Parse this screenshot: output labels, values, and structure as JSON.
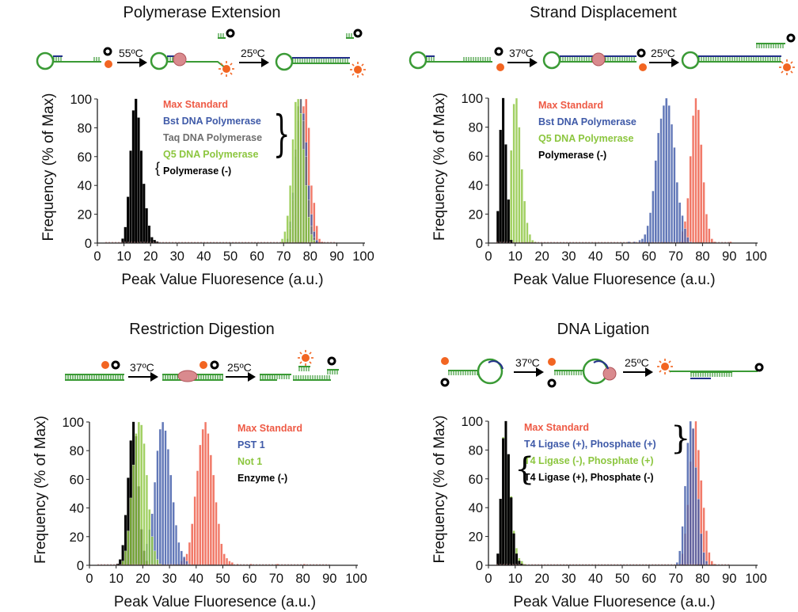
{
  "schematics": [
    {
      "temps": [
        "55ºC",
        "25ºC"
      ]
    },
    {
      "temps": [
        "37ºC",
        "25ºC"
      ]
    },
    {
      "temps": [
        "37ºC",
        "25ºC"
      ]
    },
    {
      "temps": [
        "37ºC",
        "25ºC"
      ]
    }
  ],
  "colors": {
    "red": "#ee5a45",
    "blue": "#3f5aa8",
    "gray": "#6e6e6e",
    "green": "#8cc63f",
    "black": "#000000",
    "dna_green": "#3a9a35",
    "dna_blue": "#23308a",
    "fluor": "#f26522",
    "enzyme": "#d98a8e"
  },
  "chart_data": [
    {
      "type": "bar",
      "title": "Polymerase Extension",
      "xlabel": "Peak Value Fluoresence (a.u.)",
      "ylabel": "Frequency (% of Max)",
      "xlim": [
        0,
        100
      ],
      "ylim": [
        0,
        100
      ],
      "xticks": [
        "0",
        "10",
        "20",
        "30",
        "40",
        "50",
        "60",
        "70",
        "80",
        "90",
        "100"
      ],
      "yticks": [
        "0",
        "20",
        "40",
        "60",
        "80",
        "100"
      ],
      "grid": false,
      "legend": "top-center",
      "series": [
        {
          "name": "Max Standard",
          "color": "#ee5a45",
          "bins": [
            [
              73,
              5
            ],
            [
              74,
              20
            ],
            [
              75,
              55
            ],
            [
              76,
              80
            ],
            [
              77,
              95
            ],
            [
              78,
              100
            ],
            [
              79,
              80
            ],
            [
              80,
              40
            ],
            [
              81,
              28
            ],
            [
              82,
              12
            ],
            [
              83,
              3
            ],
            [
              84,
              1
            ]
          ]
        },
        {
          "name": "Bst DNA Polymerase",
          "color": "#3f5aa8",
          "bins": [
            [
              71,
              3
            ],
            [
              72,
              15
            ],
            [
              73,
              35
            ],
            [
              74,
              60
            ],
            [
              75,
              85
            ],
            [
              76,
              100
            ],
            [
              77,
              90
            ],
            [
              78,
              70
            ],
            [
              79,
              40
            ],
            [
              80,
              20
            ],
            [
              81,
              8
            ],
            [
              82,
              2
            ]
          ]
        },
        {
          "name": "Taq DNA Polymerase",
          "color": "#6e6e6e",
          "bins": [
            [
              72,
              10
            ],
            [
              73,
              30
            ],
            [
              74,
              65
            ],
            [
              75,
              95
            ],
            [
              76,
              100
            ],
            [
              77,
              85
            ],
            [
              78,
              60
            ],
            [
              79,
              30
            ],
            [
              80,
              12
            ],
            [
              81,
              4
            ]
          ]
        },
        {
          "name": "Q5 DNA Polymerase",
          "color": "#8cc63f",
          "bins": [
            [
              69,
              3
            ],
            [
              70,
              8
            ],
            [
              71,
              19
            ],
            [
              72,
              40
            ],
            [
              73,
              72
            ],
            [
              74,
              98
            ],
            [
              75,
              100
            ],
            [
              76,
              90
            ],
            [
              77,
              65
            ],
            [
              78,
              40
            ],
            [
              79,
              18
            ],
            [
              80,
              6
            ],
            [
              81,
              2
            ]
          ]
        },
        {
          "name": "Polymerase (-)",
          "color": "#000000",
          "bins": [
            [
              9,
              3
            ],
            [
              10,
              11
            ],
            [
              11,
              32
            ],
            [
              12,
              64
            ],
            [
              13,
              92
            ],
            [
              14,
              100
            ],
            [
              15,
              87
            ],
            [
              16,
              64
            ],
            [
              17,
              41
            ],
            [
              18,
              24
            ],
            [
              19,
              12
            ],
            [
              20,
              4
            ],
            [
              21,
              2
            ],
            [
              22,
              1
            ]
          ]
        }
      ]
    },
    {
      "type": "bar",
      "title": "Strand Displacement",
      "xlabel": "Peak Value Fluoresence (a.u.)",
      "ylabel": "Frequency (% of Max)",
      "xlim": [
        0,
        100
      ],
      "ylim": [
        0,
        100
      ],
      "xticks": [
        "0",
        "10",
        "20",
        "30",
        "40",
        "50",
        "60",
        "70",
        "80",
        "90",
        "100"
      ],
      "yticks": [
        "0",
        "20",
        "40",
        "60",
        "80",
        "100"
      ],
      "grid": false,
      "legend": "top-center",
      "series": [
        {
          "name": "Max Standard",
          "color": "#ee5a45",
          "bins": [
            [
              72,
              8
            ],
            [
              73,
              15
            ],
            [
              74,
              31
            ],
            [
              75,
              60
            ],
            [
              76,
              88
            ],
            [
              77,
              100
            ],
            [
              78,
              92
            ],
            [
              79,
              68
            ],
            [
              80,
              42
            ],
            [
              81,
              20
            ],
            [
              82,
              10
            ],
            [
              83,
              3
            ],
            [
              84,
              1
            ],
            [
              90,
              1
            ]
          ]
        },
        {
          "name": "Bst DNA Polymerase",
          "color": "#3f5aa8",
          "bins": [
            [
              52,
              1
            ],
            [
              54,
              1
            ],
            [
              56,
              2
            ],
            [
              57,
              3
            ],
            [
              58,
              6
            ],
            [
              59,
              12
            ],
            [
              60,
              21
            ],
            [
              61,
              36
            ],
            [
              62,
              57
            ],
            [
              63,
              76
            ],
            [
              64,
              86
            ],
            [
              65,
              95
            ],
            [
              66,
              100
            ],
            [
              67,
              95
            ],
            [
              68,
              82
            ],
            [
              69,
              66
            ],
            [
              70,
              42
            ],
            [
              71,
              28
            ],
            [
              72,
              19
            ],
            [
              73,
              10
            ],
            [
              74,
              4
            ],
            [
              75,
              1
            ]
          ]
        },
        {
          "name": "Q5 DNA Polymerase",
          "color": "#8cc63f",
          "bins": [
            [
              6,
              8
            ],
            [
              7,
              28
            ],
            [
              8,
              64
            ],
            [
              9,
              96
            ],
            [
              10,
              100
            ],
            [
              11,
              80
            ],
            [
              12,
              51
            ],
            [
              13,
              29
            ],
            [
              14,
              14
            ],
            [
              15,
              6
            ],
            [
              16,
              2
            ],
            [
              17,
              1
            ]
          ]
        },
        {
          "name": "Polymerase (-)",
          "color": "#000000",
          "bins": [
            [
              3,
              22
            ],
            [
              4,
              78
            ],
            [
              5,
              100
            ],
            [
              6,
              68
            ],
            [
              7,
              30
            ],
            [
              8,
              2
            ]
          ]
        }
      ]
    },
    {
      "type": "bar",
      "title": "Restriction Digestion",
      "xlabel": "Peak Value Fluoresence (a.u.)",
      "ylabel": "Frequency (% of Max)",
      "xlim": [
        0,
        100
      ],
      "ylim": [
        0,
        100
      ],
      "xticks": [
        "0",
        "10",
        "20",
        "30",
        "40",
        "50",
        "60",
        "70",
        "80",
        "90",
        "100"
      ],
      "yticks": [
        "0",
        "20",
        "40",
        "60",
        "80",
        "100"
      ],
      "grid": false,
      "legend": "top-right",
      "series": [
        {
          "name": "Max Standard",
          "color": "#ee5a45",
          "bins": [
            [
              34,
              3
            ],
            [
              35,
              5
            ],
            [
              36,
              8
            ],
            [
              37,
              16
            ],
            [
              38,
              29
            ],
            [
              39,
              48
            ],
            [
              40,
              66
            ],
            [
              41,
              84
            ],
            [
              42,
              95
            ],
            [
              43,
              100
            ],
            [
              44,
              92
            ],
            [
              45,
              77
            ],
            [
              46,
              63
            ],
            [
              47,
              44
            ],
            [
              48,
              29
            ],
            [
              49,
              15
            ],
            [
              50,
              8
            ],
            [
              51,
              5
            ],
            [
              52,
              3
            ],
            [
              53,
              2
            ],
            [
              55,
              1
            ],
            [
              60,
              1
            ],
            [
              70,
              1
            ],
            [
              80,
              1
            ]
          ]
        },
        {
          "name": "PST 1",
          "color": "#3f5aa8",
          "bins": [
            [
              18,
              3
            ],
            [
              20,
              8
            ],
            [
              21,
              15
            ],
            [
              22,
              25
            ],
            [
              23,
              36
            ],
            [
              24,
              58
            ],
            [
              25,
              80
            ],
            [
              26,
              95
            ],
            [
              27,
              100
            ],
            [
              28,
              94
            ],
            [
              29,
              81
            ],
            [
              30,
              63
            ],
            [
              31,
              44
            ],
            [
              32,
              28
            ],
            [
              33,
              16
            ],
            [
              34,
              10
            ],
            [
              35,
              6
            ],
            [
              36,
              3
            ],
            [
              37,
              1
            ]
          ]
        },
        {
          "name": "Enzyme (-)",
          "color": "#000000",
          "bins": [
            [
              10,
              1
            ],
            [
              11,
              4
            ],
            [
              12,
              14
            ],
            [
              13,
              35
            ],
            [
              14,
              61
            ],
            [
              15,
              87
            ],
            [
              16,
              100
            ],
            [
              17,
              90
            ],
            [
              18,
              55
            ],
            [
              19,
              25
            ],
            [
              20,
              10
            ],
            [
              21,
              3
            ]
          ]
        },
        {
          "name": "Not 1",
          "color": "#8cc63f",
          "bins": [
            [
              12,
              3
            ],
            [
              13,
              10
            ],
            [
              14,
              24
            ],
            [
              15,
              47
            ],
            [
              16,
              70
            ],
            [
              17,
              92
            ],
            [
              18,
              100
            ],
            [
              19,
              98
            ],
            [
              20,
              85
            ],
            [
              21,
              63
            ],
            [
              22,
              39
            ],
            [
              23,
              20
            ],
            [
              24,
              10
            ],
            [
              25,
              4
            ],
            [
              26,
              1
            ]
          ]
        }
      ],
      "legend_order": [
        0,
        1,
        3,
        2
      ]
    },
    {
      "type": "bar",
      "title": "DNA Ligation",
      "xlabel": "Peak Value Fluoresence (a.u.)",
      "ylabel": "Frequency (% of Max)",
      "xlim": [
        0,
        100
      ],
      "ylim": [
        0,
        100
      ],
      "xticks": [
        "0",
        "10",
        "20",
        "30",
        "40",
        "50",
        "60",
        "70",
        "80",
        "90",
        "100"
      ],
      "yticks": [
        "0",
        "20",
        "40",
        "60",
        "80",
        "100"
      ],
      "grid": false,
      "legend": "top-center",
      "series": [
        {
          "name": "Max Standard",
          "color": "#ee5a45",
          "bins": [
            [
              72,
              8
            ],
            [
              73,
              22
            ],
            [
              74,
              42
            ],
            [
              75,
              72
            ],
            [
              76,
              95
            ],
            [
              77,
              100
            ],
            [
              78,
              80
            ],
            [
              79,
              59
            ],
            [
              80,
              40
            ],
            [
              81,
              24
            ],
            [
              82,
              9
            ],
            [
              83,
              3
            ],
            [
              84,
              1
            ]
          ]
        },
        {
          "name": "T4 Ligase (+), Phosphate (+)",
          "color": "#3f5aa8",
          "bins": [
            [
              70,
              2
            ],
            [
              71,
              10
            ],
            [
              72,
              27
            ],
            [
              73,
              55
            ],
            [
              74,
              85
            ],
            [
              75,
              100
            ],
            [
              76,
              95
            ],
            [
              77,
              68
            ],
            [
              78,
              46
            ],
            [
              79,
              22
            ],
            [
              80,
              9
            ],
            [
              81,
              3
            ]
          ]
        },
        {
          "name": "T4 Ligase (-), Phosphate (+)",
          "color": "#8cc63f",
          "bins": [
            [
              3,
              8
            ],
            [
              4,
              46
            ],
            [
              5,
              89
            ],
            [
              6,
              100
            ],
            [
              7,
              77
            ],
            [
              8,
              48
            ],
            [
              9,
              24
            ],
            [
              10,
              12
            ],
            [
              11,
              5
            ],
            [
              12,
              3
            ],
            [
              13,
              1
            ]
          ]
        },
        {
          "name": "T4 Ligase (+), Phosphate (-)",
          "color": "#000000",
          "bins": [
            [
              3,
              8
            ],
            [
              4,
              46
            ],
            [
              5,
              88
            ],
            [
              6,
              100
            ],
            [
              7,
              77
            ],
            [
              8,
              47
            ],
            [
              9,
              22
            ],
            [
              10,
              8
            ],
            [
              11,
              3
            ],
            [
              12,
              1
            ]
          ]
        }
      ]
    }
  ]
}
